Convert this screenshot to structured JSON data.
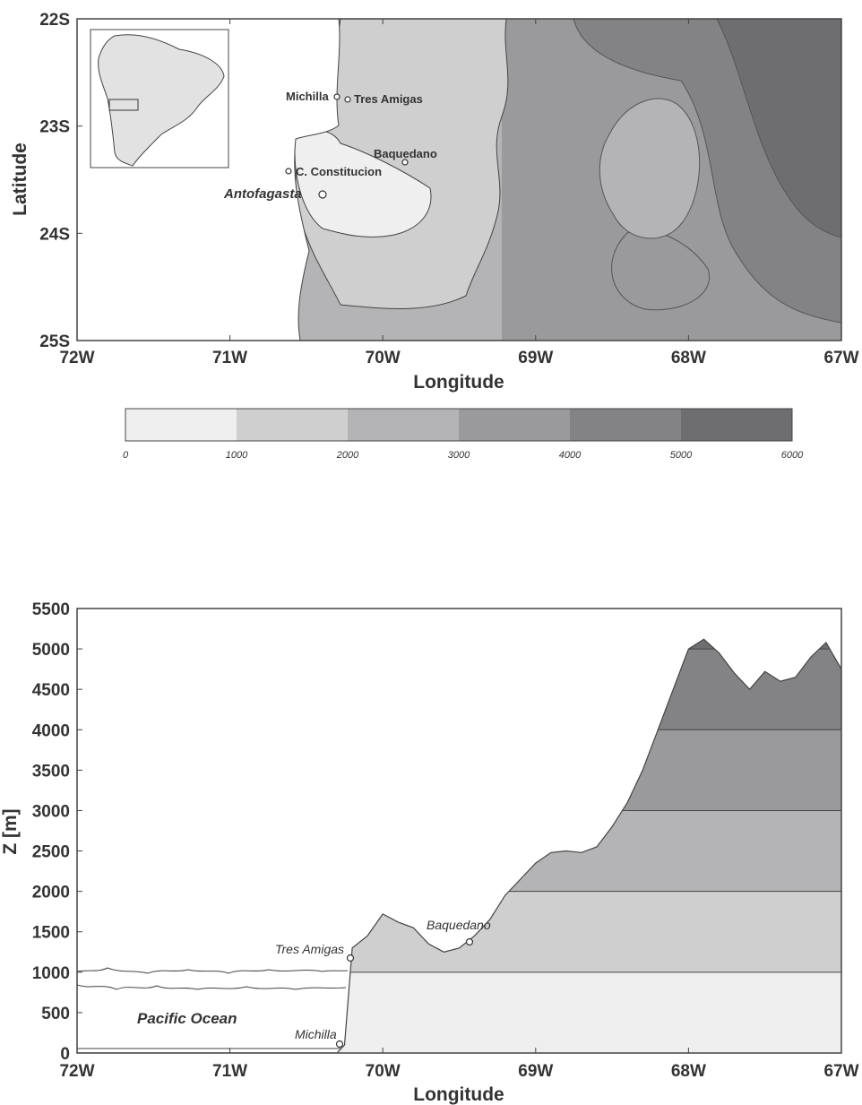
{
  "colors": {
    "band_0_1000": "#efefef",
    "band_1000_2000": "#cfcfd0",
    "band_2000_3000": "#b4b4b6",
    "band_3000_4000": "#9a9a9c",
    "band_4000_5000": "#838385",
    "band_5000_6000": "#6e6e70",
    "outline": "#444444"
  },
  "map": {
    "x_ticks": [
      "72W",
      "71W",
      "70W",
      "69W",
      "68W",
      "67W"
    ],
    "y_ticks": [
      "22S",
      "23S",
      "24S",
      "25S"
    ],
    "x_label": "Longitude",
    "y_label": "Latitude",
    "places": {
      "michilla": "Michilla",
      "tres_amigas": "Tres Amigas",
      "baquedano": "Baquedano",
      "c_constitucion": "C. Constitucion",
      "antofagasta": "Antofagasta"
    },
    "inset": "south-america-inset"
  },
  "colorbar": {
    "ticks": [
      "0",
      "1000",
      "2000",
      "3000",
      "4000",
      "5000",
      "6000"
    ]
  },
  "chart_data": {
    "type": "area",
    "x_ticks": [
      "72W",
      "71W",
      "70W",
      "69W",
      "68W",
      "67W"
    ],
    "xlabel": "Longitude",
    "ylabel": "Z [m]",
    "ylim": [
      0,
      5500
    ],
    "y_ticks": [
      "5500",
      "5000",
      "4500",
      "4000",
      "3500",
      "3000",
      "2500",
      "2000",
      "1500",
      "1000",
      "500",
      "0"
    ],
    "x": [
      -72.0,
      -70.3,
      -70.25,
      -70.2,
      -70.1,
      -70.0,
      -69.9,
      -69.8,
      -69.7,
      -69.6,
      -69.5,
      -69.4,
      -69.3,
      -69.2,
      -69.1,
      -69.0,
      -68.9,
      -68.8,
      -68.7,
      -68.6,
      -68.5,
      -68.4,
      -68.3,
      -68.2,
      -68.1,
      -68.0,
      -67.9,
      -67.8,
      -67.7,
      -67.6,
      -67.5,
      -67.4,
      -67.3,
      -67.2,
      -67.1,
      -67.0
    ],
    "elevation": [
      0,
      0,
      100,
      1300,
      1450,
      1720,
      1620,
      1550,
      1350,
      1250,
      1300,
      1450,
      1650,
      1950,
      2150,
      2350,
      2480,
      2500,
      2480,
      2550,
      2800,
      3100,
      3500,
      4000,
      4500,
      5000,
      5120,
      4950,
      4700,
      4500,
      4720,
      4600,
      4650,
      4900,
      5080,
      4750
    ],
    "bands": [
      0,
      1000,
      2000,
      3000,
      4000,
      5000
    ],
    "annotations": {
      "ocean": "Pacific Ocean",
      "tres_amigas": "Tres Amigas",
      "baquedano": "Baquedano",
      "michilla": "Michilla"
    }
  }
}
